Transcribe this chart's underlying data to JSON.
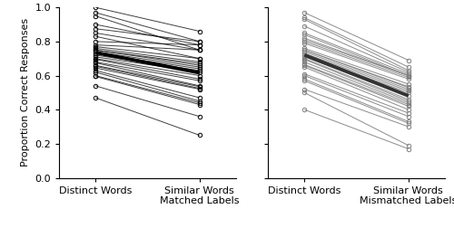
{
  "ylabel": "Proportion Correct Responses",
  "ylim": [
    0,
    1
  ],
  "yticks": [
    0,
    0.2,
    0.4,
    0.6,
    0.8,
    1.0
  ],
  "panel1_xtick0": "Distinct Words",
  "panel1_xtick1": "Similar Words\nMatched Labels",
  "panel2_xtick0": "Distinct Words",
  "panel2_xtick1": "Similar Words\nMismatched Labels",
  "panel1_color": "#000000",
  "panel2_color": "#7f7f7f",
  "panel2_mean_color": "#333333",
  "thin_lw": 0.7,
  "thick_lw": 2.8,
  "marker_size": 3.2,
  "panel1_distinct": [
    1.0,
    0.97,
    0.95,
    0.9,
    0.875,
    0.85,
    0.83,
    0.8,
    0.78,
    0.77,
    0.76,
    0.75,
    0.75,
    0.74,
    0.73,
    0.72,
    0.71,
    0.7,
    0.695,
    0.68,
    0.675,
    0.66,
    0.655,
    0.645,
    0.63,
    0.62,
    0.6,
    0.595,
    0.54,
    0.47
  ],
  "panel1_similar": [
    0.86,
    0.8,
    0.75,
    0.78,
    0.8,
    0.75,
    0.7,
    0.78,
    0.75,
    0.7,
    0.68,
    0.67,
    0.66,
    0.65,
    0.64,
    0.63,
    0.62,
    0.6,
    0.58,
    0.57,
    0.54,
    0.535,
    0.525,
    0.52,
    0.47,
    0.45,
    0.44,
    0.43,
    0.36,
    0.25
  ],
  "panel2_distinct": [
    0.97,
    0.94,
    0.93,
    0.89,
    0.85,
    0.84,
    0.82,
    0.81,
    0.8,
    0.79,
    0.76,
    0.75,
    0.75,
    0.74,
    0.73,
    0.72,
    0.71,
    0.7,
    0.695,
    0.68,
    0.665,
    0.66,
    0.65,
    0.61,
    0.6,
    0.58,
    0.57,
    0.52,
    0.5,
    0.4
  ],
  "panel2_similar": [
    0.69,
    0.65,
    0.63,
    0.62,
    0.61,
    0.6,
    0.6,
    0.6,
    0.59,
    0.58,
    0.55,
    0.535,
    0.53,
    0.52,
    0.51,
    0.5,
    0.48,
    0.46,
    0.45,
    0.44,
    0.43,
    0.42,
    0.4,
    0.38,
    0.36,
    0.33,
    0.32,
    0.3,
    0.19,
    0.17
  ]
}
